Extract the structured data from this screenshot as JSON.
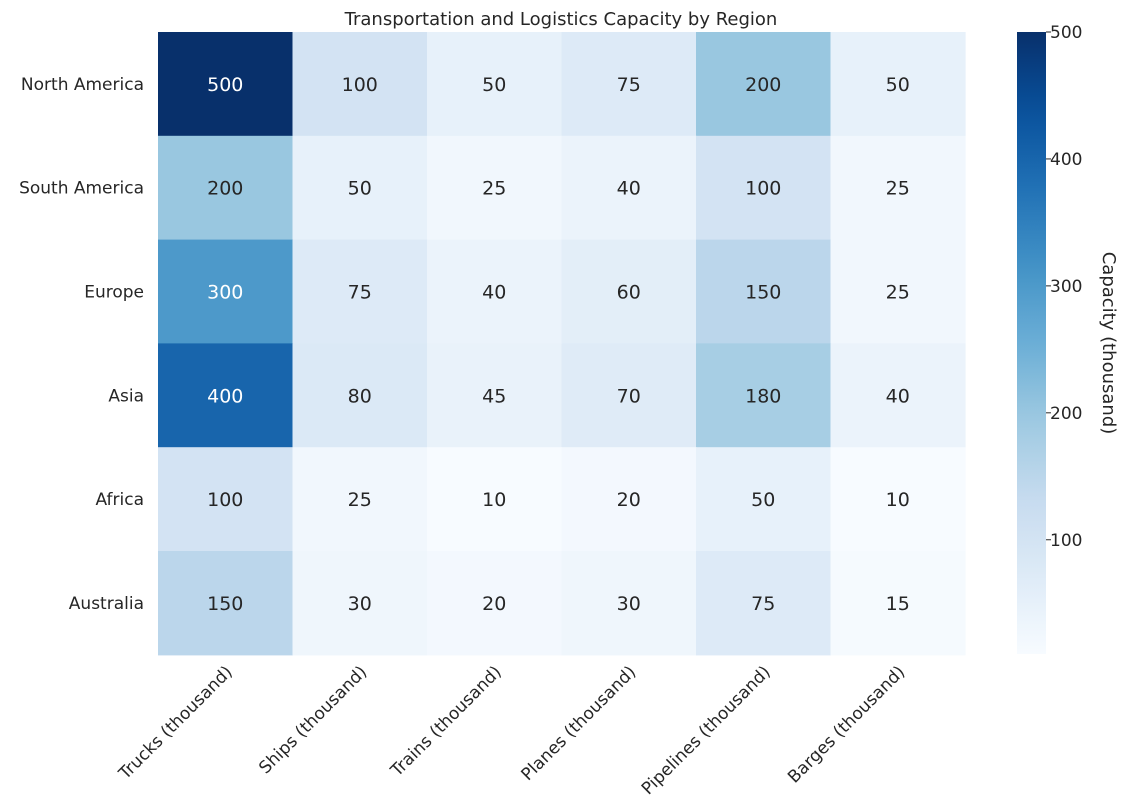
{
  "chart_data": {
    "type": "heatmap",
    "title": "Transportation and Logistics Capacity by Region",
    "rows": [
      "North America",
      "South America",
      "Europe",
      "Asia",
      "Africa",
      "Australia"
    ],
    "columns": [
      "Trucks (thousand)",
      "Ships (thousand)",
      "Trains (thousand)",
      "Planes (thousand)",
      "Pipelines (thousand)",
      "Barges (thousand)"
    ],
    "values": [
      [
        500,
        100,
        50,
        75,
        200,
        50
      ],
      [
        200,
        50,
        25,
        40,
        100,
        25
      ],
      [
        300,
        75,
        40,
        60,
        150,
        25
      ],
      [
        400,
        80,
        45,
        70,
        180,
        40
      ],
      [
        100,
        25,
        10,
        20,
        50,
        10
      ],
      [
        150,
        30,
        20,
        30,
        75,
        15
      ]
    ],
    "colorbar": {
      "label": "Capacity (thousand)",
      "min": 10,
      "max": 500,
      "ticks": [
        100,
        200,
        300,
        400,
        500
      ],
      "colormap": "Blues"
    },
    "cell_annotations": true,
    "grid": false
  }
}
